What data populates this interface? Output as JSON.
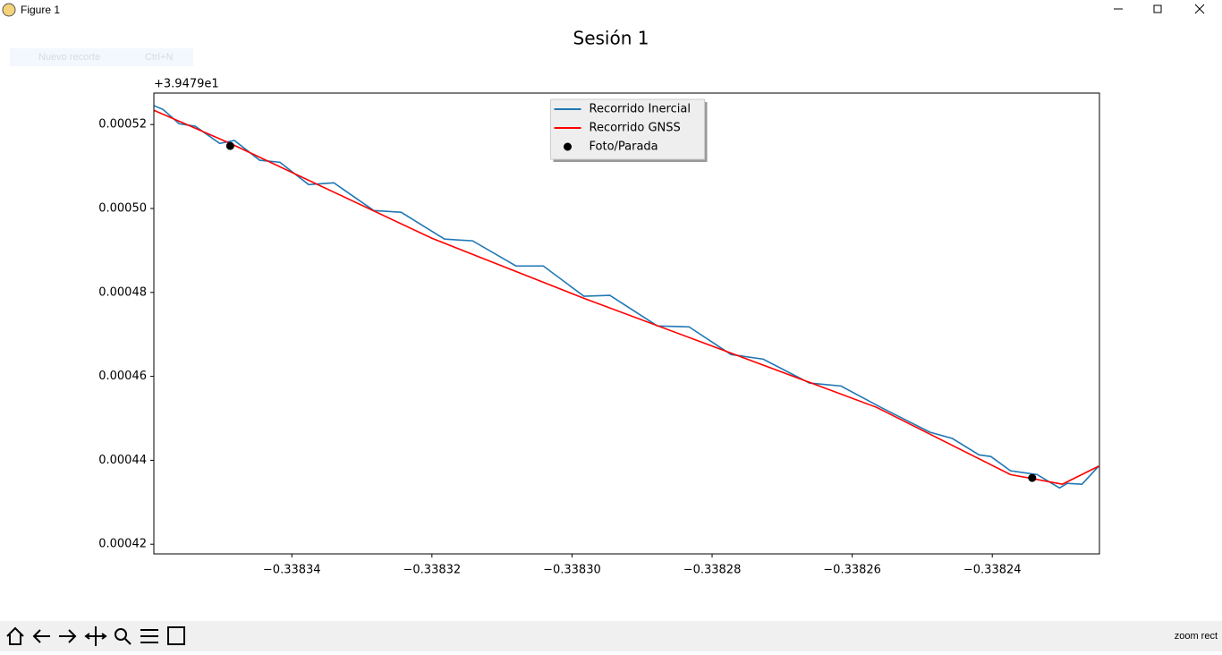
{
  "window": {
    "title": "Figure 1",
    "menu_item": "Nuevo recorte",
    "menu_shortcut": "Ctrl+N",
    "status": "zoom rect"
  },
  "chart_data": {
    "type": "line",
    "title": "Sesión 1",
    "y_offset_text": "+3.9479e1",
    "xlim": [
      -0.3383597,
      -0.3382247
    ],
    "ylim": [
      0.0004177,
      0.0005275
    ],
    "xticks": [
      {
        "value": -0.33834,
        "label": "−0.33834"
      },
      {
        "value": -0.33832,
        "label": "−0.33832"
      },
      {
        "value": -0.3383,
        "label": "−0.33830"
      },
      {
        "value": -0.33828,
        "label": "−0.33828"
      },
      {
        "value": -0.33826,
        "label": "−0.33826"
      },
      {
        "value": -0.33824,
        "label": "−0.33824"
      }
    ],
    "yticks": [
      0.00042,
      0.00044,
      0.00046,
      0.00048,
      {
        "value": 0.0005,
        "label": "0.00050"
      },
      0.00052
    ],
    "legend": "upper center",
    "grid": false,
    "series": [
      {
        "name": "Recorrido Inercial",
        "color": "#1f77b4",
        "marker": "none",
        "x": [
          -0.3383597,
          -0.3383584,
          -0.3383561,
          -0.3383538,
          -0.3383503,
          -0.3383482,
          -0.3383446,
          -0.3383417,
          -0.3383376,
          -0.338334,
          -0.3383283,
          -0.3383244,
          -0.3383182,
          -0.3383142,
          -0.338308,
          -0.3383041,
          -0.3382983,
          -0.3382946,
          -0.3382878,
          -0.3382833,
          -0.3382773,
          -0.3382727,
          -0.3382661,
          -0.3382616,
          -0.3382559,
          -0.3382489,
          -0.3382457,
          -0.3382419,
          -0.3382402,
          -0.3382374,
          -0.3382336,
          -0.3382304,
          -0.3382293,
          -0.3382272,
          -0.3382248
        ],
        "values": [
          0.0005245,
          0.0005236,
          0.0005202,
          0.0005196,
          0.0005155,
          0.0005162,
          0.0005115,
          0.000511,
          0.0005057,
          0.0005061,
          0.0004995,
          0.0004991,
          0.0004927,
          0.0004923,
          0.0004863,
          0.0004863,
          0.0004791,
          0.0004793,
          0.000472,
          0.0004718,
          0.0004652,
          0.0004641,
          0.0004584,
          0.0004577,
          0.0004526,
          0.0004467,
          0.0004452,
          0.0004413,
          0.0004409,
          0.0004375,
          0.0004366,
          0.0004334,
          0.0004345,
          0.0004343,
          0.0004386
        ]
      },
      {
        "name": "Recorrido GNSS",
        "color": "#ff0000",
        "marker": "none",
        "x": [
          -0.3383597,
          -0.3383488,
          -0.33832,
          -0.3382983,
          -0.3382565,
          -0.3382374,
          -0.33823,
          -0.3382248
        ],
        "values": [
          0.0005234,
          0.0005155,
          0.0004929,
          0.0004786,
          0.0004526,
          0.0004366,
          0.0004343,
          0.0004386
        ]
      },
      {
        "name": "Foto/Parada",
        "color": "#000000",
        "marker": "o",
        "x": [
          -0.3383488,
          -0.3382343
        ],
        "values": [
          0.0005149,
          0.0004358
        ]
      }
    ]
  }
}
